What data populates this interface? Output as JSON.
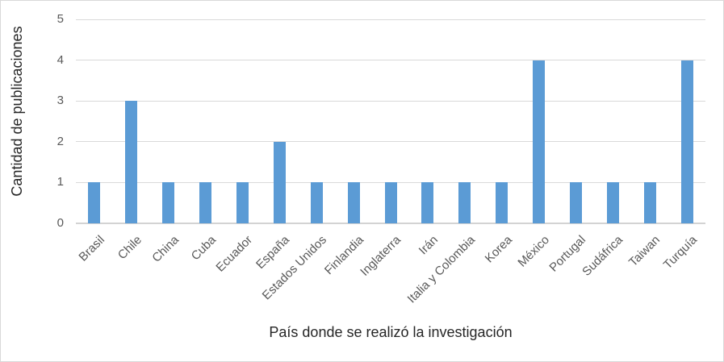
{
  "chart_data": {
    "type": "bar",
    "title": "",
    "xlabel": "País donde se realizó la investigación",
    "ylabel": "Cantidad de publicaciones",
    "categories": [
      "Brasil",
      "Chile",
      "China",
      "Cuba",
      "Ecuador",
      "España",
      "Estados Unidos",
      "Finlandia",
      "Inglaterra",
      "Irán",
      "Italia y Colombia",
      "Korea",
      "México",
      "Portugal",
      "Sudáfrica",
      "Taiwan",
      "Turquía"
    ],
    "values": [
      1,
      3,
      1,
      1,
      1,
      2,
      1,
      1,
      1,
      1,
      1,
      1,
      4,
      1,
      1,
      1,
      4
    ],
    "ylim": [
      0,
      5
    ],
    "yticks": [
      0,
      1,
      2,
      3,
      4,
      5
    ],
    "grid": true,
    "legend": false,
    "colors": {
      "bar": "#5B9BD5",
      "gridline": "#D9D9D9",
      "axis_line": "#D3D3D3",
      "tick_label": "#595959",
      "axis_title": "#262626",
      "border": "#D9D9D9",
      "background": "#FFFFFF"
    }
  }
}
